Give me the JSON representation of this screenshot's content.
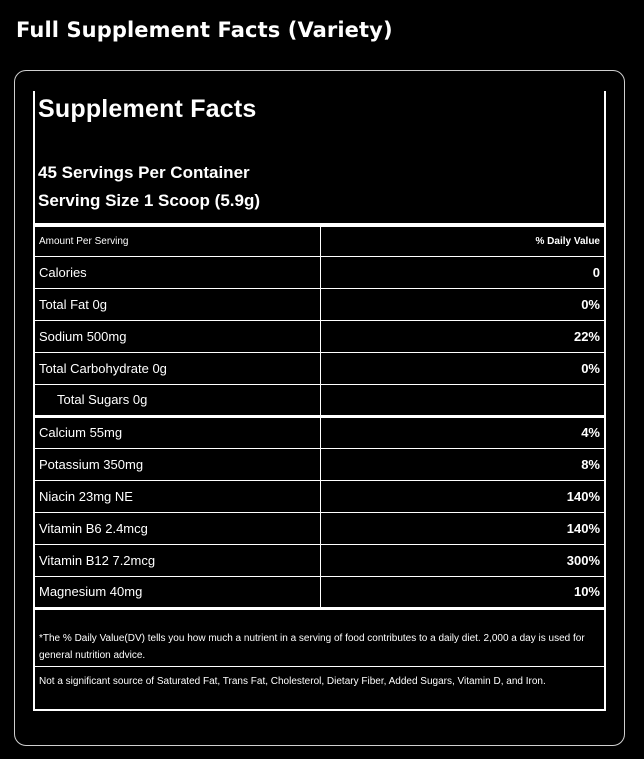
{
  "heading": "Full Supplement Facts (Variety)",
  "facts": {
    "title": "Supplement Facts",
    "servings": "45 Servings Per Container",
    "serving_size": "Serving Size 1 Scoop (5.9g)",
    "header": {
      "amount": "Amount Per Serving",
      "daily_value": "% Daily Value"
    },
    "rows": [
      {
        "name": "Calories",
        "dv": "0"
      },
      {
        "name": "Total Fat 0g",
        "dv": "0%"
      },
      {
        "name": "Sodium 500mg",
        "dv": "22%"
      },
      {
        "name": "Total Carbohydrate 0g",
        "dv": "0%"
      },
      {
        "name": "Total Sugars 0g",
        "dv": ""
      },
      {
        "name": "Calcium 55mg",
        "dv": "4%"
      },
      {
        "name": "Potassium 350mg",
        "dv": "8%"
      },
      {
        "name": "Niacin 23mg NE",
        "dv": "140%"
      },
      {
        "name": "Vitamin B6 2.4mcg",
        "dv": "140%"
      },
      {
        "name": "Vitamin B12 7.2mcg",
        "dv": "300%"
      },
      {
        "name": "Magnesium 40mg",
        "dv": "10%"
      }
    ],
    "footnote_dv": "*The % Daily Value(DV) tells you how much a nutrient in a serving of food contributes to a daily diet. 2,000 a day is used for general nutrition advice.",
    "footnote_sources": "Not a significant source of Saturated Fat, Trans Fat, Cholesterol, Dietary Fiber, Added Sugars, Vitamin D, and Iron."
  }
}
